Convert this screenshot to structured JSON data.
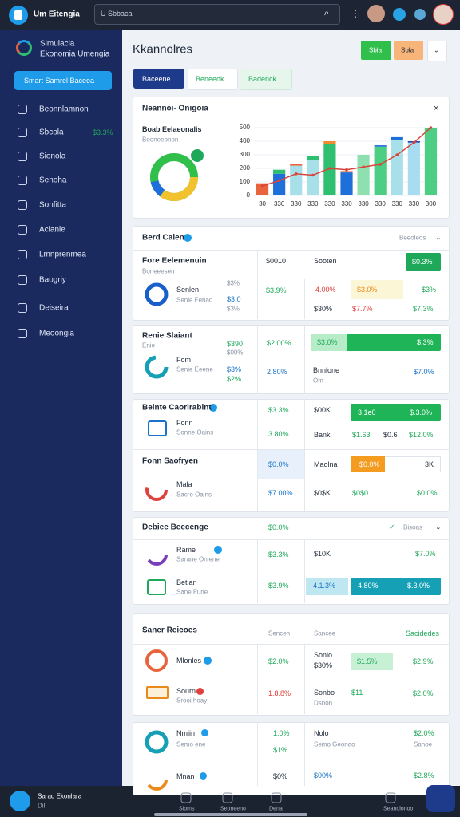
{
  "topbar": {
    "app_name": "Um Eitengia",
    "search_placeholder": "U Sbbacal"
  },
  "sidebar": {
    "brand": [
      "Simulacia",
      "Ekonomia Umengia"
    ],
    "cta": "Smart Samrel Baceea",
    "nav": [
      "Beonnlamnon",
      "Sbcola",
      "Sionola",
      "Senoha",
      "Sonfitta",
      "Acianle",
      "Lmnprenmea",
      "Baogriy",
      "Deiseira",
      "Meoongia"
    ],
    "nav_badge": "$3.3%",
    "profile": {
      "name": "Sarad Ekonlara",
      "role": "Dil"
    }
  },
  "header": {
    "title": "Kkannolres",
    "actions": [
      "Sbla",
      "Sbla"
    ],
    "tabs": [
      "Baceene",
      "Beneeok",
      "Badenck"
    ]
  },
  "overview": {
    "title": "Neannoi- Onigoia",
    "subtitle": "Boab Eelaeonalis",
    "caption": "Booneeonon",
    "chart": {
      "type": "bar",
      "categories": [
        "30",
        "330",
        "330",
        "330",
        "330",
        "330",
        "330",
        "330",
        "330",
        "330",
        "300"
      ],
      "ylim": [
        0,
        500
      ],
      "yticks": [
        0,
        100,
        200,
        300,
        400,
        500
      ],
      "series": [
        {
          "colors": [
            "#e8643c",
            "#1e6fd9",
            "#a8e0ea",
            "#a8e0ea",
            "#2fbf71",
            "#1e6fd9",
            "#8fe0b0",
            "#4ccf85",
            "#a8e0ea",
            "#a8dcf0",
            "#4ccf85"
          ],
          "values": [
            90,
            160,
            220,
            260,
            380,
            170,
            300,
            360,
            410,
            390,
            500
          ]
        },
        {
          "colors": [
            "#e8643c",
            "#2fbf71",
            "#e8643c",
            "#2fbf71",
            "#f08a2c",
            "#e8643c",
            "#8fe0b0",
            "#1e6fd9",
            "#1e6fd9",
            "#1e4fb0",
            "#4ccf85"
          ],
          "values": [
            0,
            30,
            10,
            30,
            20,
            10,
            0,
            10,
            20,
            10,
            0
          ]
        }
      ],
      "line": {
        "color": "#d9453a",
        "values": [
          70,
          110,
          160,
          150,
          200,
          190,
          210,
          230,
          300,
          390,
          500
        ]
      }
    }
  },
  "cards": [
    {
      "title": "Berd Calen",
      "texts": [
        "Beeoleos",
        "Fore Eelemenuin",
        "Boneeesen",
        "Senlen",
        "Senie Fenao",
        "$3%",
        "$3.0",
        "$3%",
        "$0010",
        "$3.9%",
        "Sooten",
        "$0.3%",
        "4.00%",
        "$3.0%",
        "$3%",
        "$30%",
        "$7.7%",
        "$7.3%"
      ]
    },
    {
      "title": "Renie Slaiant",
      "texts": [
        "Enie",
        "$390",
        "$00%",
        "Fom",
        "Senie Eeene",
        "$3%",
        "$2%",
        "$2.00%",
        "2.80%",
        "$3.0%",
        "$.3%",
        "Bnnlone",
        "Om",
        "$7.0%"
      ]
    },
    {
      "title": "Beinte Caorirabint",
      "texts": [
        "Fonn",
        "Sonne Oains",
        "$3.3%",
        "3.80%",
        "$00K",
        "3.1e0",
        "$.3.0%",
        "Bank",
        "$1.63",
        "$0.6",
        "$12.0%",
        "Fonn Saofryen",
        "Mala",
        "Sacre Oains",
        "$0.0%",
        "$7.00%",
        "Maolna",
        "$0.0%",
        "3K",
        "$0$K",
        "$0$0",
        "$0.0%"
      ]
    },
    {
      "title": "Debiee Beecenge",
      "texts": [
        "$0.0%",
        "Bisoas",
        "Rame",
        "Sarane Onlene",
        "$3.3%",
        "$10K",
        "$7.0%",
        "Betian",
        "Sane Fune",
        "$3.9%",
        "4.1.3%",
        "4.80%",
        "$.3.0%"
      ]
    },
    {
      "title": "Saner Reicoes",
      "texts": [
        "Sencen",
        "Sancee",
        "Sacidedes",
        "Mlonles",
        "$2.0%",
        "Sonlo",
        "$30%",
        "$1.5%",
        "$2.9%",
        "Sourn",
        "Srooi hoay",
        "1.8.8%",
        "Sonbo",
        "Dsnon",
        "$11",
        "$2.0%"
      ]
    },
    {
      "texts": [
        "Nmiin",
        "Semo ene",
        "1.0%",
        "$1%",
        "Nolo",
        "Semo Geonao",
        "$2.0%",
        "Sanoe",
        "Mnan",
        "$0%",
        "$00%",
        "$2.8%"
      ]
    }
  ],
  "bottom_nav": [
    "Sioms",
    "Seoneeno",
    "Dena",
    "Seanolonoo"
  ]
}
